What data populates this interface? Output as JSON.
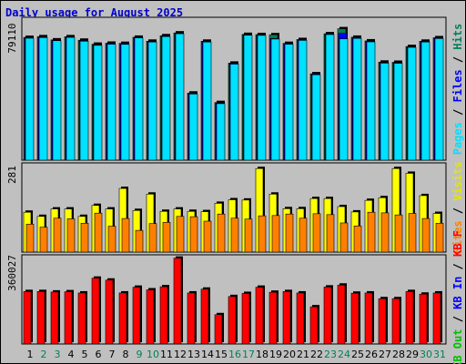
{
  "chart_data": {
    "title": "Daily usage for August 2025",
    "type": "bar",
    "days": [
      "1",
      "2",
      "3",
      "4",
      "5",
      "6",
      "7",
      "8",
      "9",
      "10",
      "11",
      "12",
      "13",
      "14",
      "15",
      "16",
      "17",
      "18",
      "19",
      "20",
      "21",
      "22",
      "23",
      "24",
      "25",
      "26",
      "27",
      "28",
      "29",
      "30",
      "31"
    ],
    "weekend_days": [
      "2",
      "3",
      "9",
      "10",
      "16",
      "17",
      "23",
      "24",
      "30",
      "31"
    ],
    "panels": {
      "top": {
        "max_label": "79110",
        "ymax": 86000,
        "legend": [
          "Hits",
          "Files",
          "Pages"
        ],
        "series": [
          {
            "name": "Hits",
            "values": [
              73900,
              74300,
              72400,
              74300,
              72200,
              69800,
              70400,
              70300,
              74000,
              71600,
              74900,
              76600,
              40400,
              71600,
              34700,
              58400,
              75700,
              75600,
              75500,
              70300,
              72600,
              52000,
              76100,
              79110,
              74000,
              71800,
              59000,
              58900,
              68400,
              71600,
              73700
            ]
          },
          {
            "name": "Files",
            "values": [
              73700,
              74100,
              72200,
              74200,
              72000,
              69500,
              70200,
              70100,
              73900,
              71400,
              74700,
              76400,
              40200,
              71400,
              34400,
              58200,
              75500,
              75400,
              73300,
              70100,
              72400,
              51800,
              75900,
              76300,
              73700,
              71500,
              58800,
              58700,
              68200,
              71400,
              73500
            ]
          },
          {
            "name": "Pages",
            "values": [
              73400,
              73800,
              71900,
              73900,
              71600,
              69100,
              69800,
              69700,
              73600,
              71100,
              74400,
              76100,
              39800,
              71100,
              34000,
              57800,
              75200,
              75100,
              72900,
              69800,
              72100,
              51400,
              75600,
              73000,
              73300,
              71200,
              58400,
              58300,
              67900,
              71100,
              73200
            ]
          }
        ]
      },
      "middle": {
        "max_label": "281",
        "ymax": 300,
        "legend": [
          "Visits",
          "Sites"
        ],
        "series": [
          {
            "name": "Visits",
            "values": [
              134,
              120,
              145,
              145,
              120,
              157,
              145,
              214,
              140,
              195,
              137,
              145,
              137,
              136,
              164,
              176,
              175,
              281,
              195,
              146,
              146,
              180,
              180,
              153,
              135,
              174,
              183,
              281,
              265,
              190,
              130
            ]
          },
          {
            "name": "Sites",
            "values": [
              94,
              84,
              114,
              112,
              97,
              131,
              87,
              113,
              73,
              96,
              100,
              120,
              119,
              104,
              128,
              114,
              111,
              122,
              123,
              128,
              114,
              129,
              126,
              98,
              88,
              134,
              132,
              125,
              130,
              113,
              97
            ]
          }
        ]
      },
      "bottom": {
        "max_label": "360027",
        "ymax": 374000,
        "legend": [
          "KB F",
          "KB In",
          "KB Out"
        ],
        "series": [
          {
            "name": "KB F",
            "values": [
              220000,
              220000,
              218000,
              219000,
              214000,
              276000,
              268000,
              214000,
              238000,
              227000,
              240000,
              360027,
              214000,
              230000,
              123000,
              199000,
              212000,
              238000,
              217000,
              220000,
              214000,
              156000,
              239000,
              247000,
              213000,
              214000,
              190000,
              190000,
              220000,
              209000,
              214000
            ]
          }
        ]
      }
    }
  },
  "colors": {
    "title": "#0000cc",
    "background": "#c0c0c0",
    "hits": "#00805c",
    "files": "#0000ff",
    "pages": "#00e0ff",
    "visits": "#ffff00",
    "sites": "#ff8000",
    "kbf": "#ff0000",
    "kbin": "#0000ff",
    "kbout": "#00c000",
    "weekday_label": "#000000",
    "weekend_label": "#00805c"
  }
}
